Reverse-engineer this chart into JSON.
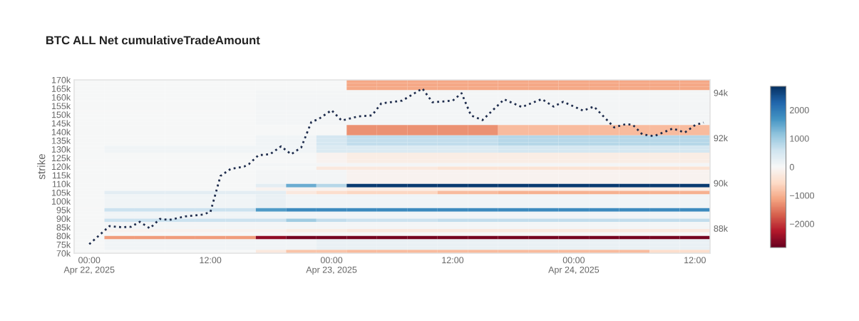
{
  "chart_data": {
    "type": "heatmap",
    "title": "BTC ALL Net cumulativeTradeAmount",
    "ylabel": "strike",
    "x": [
      "2025-04-22T00:00",
      "2025-04-22T03:00",
      "2025-04-22T06:00",
      "2025-04-22T09:00",
      "2025-04-22T12:00",
      "2025-04-22T15:00",
      "2025-04-22T18:00",
      "2025-04-22T21:00",
      "2025-04-23T00:00",
      "2025-04-23T03:00",
      "2025-04-23T06:00",
      "2025-04-23T09:00",
      "2025-04-23T12:00",
      "2025-04-23T15:00",
      "2025-04-23T18:00",
      "2025-04-23T21:00",
      "2025-04-24T00:00",
      "2025-04-24T03:00",
      "2025-04-24T06:00",
      "2025-04-24T09:00",
      "2025-04-24T12:00"
    ],
    "y": [
      169000,
      167000,
      165000,
      163000,
      161000,
      159000,
      157000,
      155000,
      153000,
      151000,
      149000,
      147000,
      145000,
      143000,
      141000,
      139000,
      137000,
      135000,
      133000,
      131000,
      129000,
      127000,
      125000,
      123000,
      121000,
      119000,
      117000,
      115000,
      113000,
      111000,
      109000,
      107000,
      105000,
      103000,
      101000,
      99000,
      97000,
      95000,
      93000,
      91000,
      89000,
      87000,
      85000,
      83000,
      81000,
      79000,
      77000,
      75000,
      73000,
      71000
    ],
    "cells": [
      [
        0,
        0,
        0,
        0,
        0,
        0,
        0,
        0,
        0,
        -1100,
        -1100,
        -1100,
        -1100,
        -1100,
        -1100,
        -1100,
        -1100,
        -1100,
        -1100,
        -1100,
        -1100
      ],
      [
        0,
        0,
        0,
        0,
        0,
        0,
        0,
        0,
        0,
        -1100,
        -1100,
        -1100,
        -1100,
        -1100,
        -1100,
        -1100,
        -1100,
        -1100,
        -1100,
        -1100,
        -1100
      ],
      [
        0,
        0,
        0,
        0,
        0,
        0,
        0,
        0,
        0,
        -1100,
        -1100,
        -1100,
        -1100,
        -1100,
        -1100,
        -1100,
        -1100,
        -1100,
        -1100,
        -1100,
        -1100
      ],
      [
        0,
        0,
        0,
        0,
        0,
        0,
        50,
        50,
        50,
        50,
        50,
        50,
        50,
        50,
        50,
        50,
        50,
        50,
        50,
        50,
        50
      ],
      [
        0,
        0,
        0,
        0,
        0,
        0,
        50,
        50,
        50,
        50,
        50,
        50,
        50,
        50,
        50,
        50,
        50,
        50,
        50,
        50,
        50
      ],
      [
        0,
        0,
        0,
        0,
        0,
        0,
        50,
        50,
        50,
        50,
        50,
        50,
        50,
        50,
        50,
        50,
        50,
        50,
        50,
        50,
        50
      ],
      [
        0,
        0,
        0,
        0,
        0,
        0,
        50,
        50,
        50,
        50,
        50,
        50,
        50,
        50,
        50,
        50,
        50,
        50,
        50,
        50,
        50
      ],
      [
        0,
        0,
        0,
        0,
        0,
        0,
        50,
        50,
        50,
        50,
        50,
        50,
        50,
        50,
        50,
        50,
        50,
        50,
        50,
        50,
        50
      ],
      [
        0,
        0,
        0,
        0,
        0,
        0,
        50,
        50,
        50,
        50,
        50,
        50,
        50,
        50,
        50,
        50,
        50,
        50,
        50,
        50,
        50
      ],
      [
        0,
        0,
        0,
        0,
        0,
        0,
        50,
        50,
        50,
        50,
        50,
        50,
        50,
        50,
        50,
        50,
        50,
        50,
        50,
        50,
        50
      ],
      [
        0,
        0,
        0,
        0,
        0,
        0,
        50,
        50,
        50,
        50,
        50,
        50,
        50,
        50,
        50,
        50,
        50,
        50,
        50,
        50,
        50
      ],
      [
        0,
        0,
        0,
        0,
        0,
        0,
        50,
        50,
        50,
        50,
        50,
        50,
        50,
        50,
        50,
        50,
        50,
        50,
        50,
        50,
        50
      ],
      [
        0,
        0,
        0,
        0,
        0,
        0,
        50,
        50,
        50,
        50,
        50,
        50,
        50,
        50,
        50,
        50,
        50,
        50,
        50,
        50,
        50
      ],
      [
        0,
        0,
        0,
        0,
        0,
        0,
        0,
        0,
        0,
        -1300,
        -1300,
        -1300,
        -1300,
        -1300,
        -900,
        -900,
        -900,
        -900,
        -900,
        -900,
        -900
      ],
      [
        0,
        0,
        0,
        0,
        0,
        0,
        0,
        0,
        0,
        -1300,
        -1300,
        -1300,
        -1300,
        -1300,
        -900,
        -900,
        -900,
        -900,
        -900,
        -900,
        -900
      ],
      [
        0,
        0,
        0,
        0,
        0,
        0,
        0,
        0,
        0,
        -1300,
        -1300,
        -1300,
        -1300,
        -1300,
        -900,
        -900,
        -900,
        -900,
        -900,
        -900,
        -900
      ],
      [
        0,
        0,
        0,
        0,
        0,
        0,
        100,
        100,
        500,
        700,
        700,
        700,
        700,
        700,
        800,
        800,
        800,
        800,
        800,
        800,
        800
      ],
      [
        0,
        0,
        0,
        0,
        0,
        0,
        100,
        100,
        500,
        700,
        700,
        700,
        700,
        700,
        800,
        800,
        800,
        800,
        800,
        800,
        800
      ],
      [
        0,
        0,
        0,
        0,
        0,
        0,
        100,
        100,
        500,
        700,
        700,
        700,
        700,
        700,
        800,
        800,
        800,
        800,
        800,
        800,
        800
      ],
      [
        0,
        100,
        100,
        100,
        100,
        100,
        100,
        100,
        400,
        400,
        400,
        400,
        400,
        400,
        500,
        500,
        500,
        500,
        500,
        500,
        500
      ],
      [
        0,
        100,
        100,
        100,
        100,
        100,
        100,
        100,
        400,
        400,
        400,
        400,
        400,
        400,
        500,
        500,
        500,
        500,
        500,
        500,
        500
      ],
      [
        0,
        0,
        0,
        0,
        0,
        0,
        0,
        0,
        -100,
        -200,
        -200,
        -200,
        -200,
        -200,
        -200,
        -200,
        -200,
        -200,
        -200,
        -200,
        -200
      ],
      [
        0,
        0,
        0,
        0,
        0,
        0,
        0,
        0,
        -100,
        -200,
        -200,
        -200,
        -200,
        -200,
        -200,
        -200,
        -200,
        -200,
        -200,
        -200,
        -200
      ],
      [
        0,
        0,
        0,
        0,
        0,
        0,
        0,
        0,
        -100,
        -200,
        -200,
        -200,
        -200,
        -200,
        -200,
        -200,
        -200,
        -200,
        -200,
        -200,
        -200
      ],
      [
        0,
        0,
        0,
        0,
        0,
        0,
        50,
        50,
        50,
        50,
        50,
        50,
        50,
        50,
        50,
        50,
        50,
        50,
        50,
        50,
        50
      ],
      [
        0,
        0,
        0,
        0,
        0,
        0,
        0,
        0,
        -300,
        -300,
        -300,
        -300,
        -400,
        -400,
        -400,
        -400,
        -400,
        -400,
        -400,
        -400,
        -400
      ],
      [
        0,
        0,
        0,
        0,
        0,
        0,
        50,
        50,
        50,
        -100,
        -100,
        -100,
        -100,
        -100,
        -100,
        -100,
        -100,
        -100,
        -100,
        -100,
        -100
      ],
      [
        0,
        0,
        0,
        0,
        0,
        0,
        50,
        50,
        50,
        -100,
        -100,
        -100,
        -100,
        -100,
        -100,
        -100,
        -100,
        -100,
        -100,
        -100,
        -100
      ],
      [
        0,
        0,
        0,
        0,
        0,
        0,
        50,
        50,
        50,
        -100,
        -100,
        -100,
        -100,
        -100,
        -100,
        -100,
        -100,
        -100,
        -100,
        -100,
        -100
      ],
      [
        0,
        0,
        0,
        0,
        0,
        0,
        50,
        50,
        50,
        -100,
        -100,
        -100,
        -100,
        -100,
        -100,
        -100,
        -100,
        -100,
        -100,
        -100,
        -100
      ],
      [
        0,
        0,
        0,
        0,
        0,
        0,
        300,
        1400,
        800,
        2700,
        2700,
        2700,
        2700,
        2700,
        2700,
        2700,
        2700,
        2700,
        2700,
        2700,
        2700
      ],
      [
        0,
        0,
        0,
        0,
        0,
        0,
        -100,
        -100,
        -100,
        -200,
        -200,
        -200,
        -200,
        -200,
        -200,
        -200,
        -200,
        -200,
        -200,
        -200,
        -200
      ],
      [
        0,
        300,
        300,
        300,
        300,
        300,
        300,
        -300,
        -500,
        -600,
        -600,
        -600,
        -900,
        -900,
        -1000,
        -1000,
        -1000,
        -1000,
        -1000,
        -1000,
        -1000
      ],
      [
        0,
        100,
        100,
        100,
        100,
        100,
        200,
        100,
        100,
        100,
        100,
        100,
        100,
        100,
        100,
        100,
        100,
        100,
        100,
        100,
        100
      ],
      [
        0,
        100,
        100,
        100,
        100,
        100,
        200,
        100,
        100,
        100,
        100,
        100,
        100,
        100,
        100,
        100,
        100,
        100,
        100,
        100,
        100
      ],
      [
        0,
        100,
        100,
        100,
        100,
        100,
        200,
        100,
        100,
        100,
        100,
        100,
        100,
        100,
        100,
        100,
        100,
        100,
        100,
        100,
        100
      ],
      [
        0,
        100,
        100,
        100,
        100,
        100,
        200,
        100,
        100,
        100,
        100,
        100,
        100,
        100,
        100,
        100,
        100,
        100,
        100,
        100,
        100
      ],
      [
        0,
        600,
        600,
        600,
        600,
        600,
        1600,
        1800,
        1800,
        1800,
        1800,
        1800,
        1800,
        1800,
        1800,
        1800,
        1800,
        1800,
        1800,
        1800,
        1800
      ],
      [
        0,
        100,
        100,
        100,
        100,
        100,
        100,
        100,
        100,
        100,
        100,
        100,
        100,
        100,
        100,
        100,
        100,
        100,
        100,
        100,
        100
      ],
      [
        0,
        100,
        100,
        100,
        100,
        100,
        100,
        100,
        100,
        100,
        100,
        100,
        100,
        100,
        100,
        100,
        100,
        100,
        100,
        100,
        100
      ],
      [
        0,
        600,
        600,
        600,
        600,
        600,
        600,
        1000,
        700,
        600,
        600,
        600,
        700,
        700,
        700,
        700,
        700,
        700,
        700,
        700,
        700
      ],
      [
        0,
        50,
        50,
        50,
        50,
        50,
        50,
        50,
        50,
        50,
        50,
        50,
        50,
        50,
        50,
        50,
        50,
        50,
        50,
        50,
        50
      ],
      [
        0,
        50,
        50,
        50,
        50,
        50,
        50,
        50,
        50,
        50,
        50,
        50,
        50,
        50,
        50,
        50,
        50,
        50,
        50,
        50,
        50
      ],
      [
        0,
        -100,
        -100,
        -100,
        -100,
        -100,
        -100,
        -200,
        -200,
        -300,
        -300,
        -300,
        -300,
        -300,
        -300,
        -300,
        -300,
        -300,
        -300,
        -300,
        -300
      ],
      [
        0,
        0,
        0,
        0,
        0,
        0,
        0,
        0,
        0,
        0,
        0,
        0,
        0,
        0,
        0,
        0,
        0,
        0,
        0,
        0,
        0
      ],
      [
        0,
        -1200,
        -1200,
        -1200,
        -1200,
        -1200,
        -2500,
        -2700,
        -2700,
        -2700,
        -2700,
        -2700,
        -2700,
        -2700,
        -2700,
        -2700,
        -2700,
        -2700,
        -2700,
        -2700,
        -2700
      ],
      [
        0,
        100,
        100,
        100,
        100,
        100,
        100,
        100,
        200,
        200,
        200,
        200,
        200,
        200,
        200,
        200,
        200,
        200,
        200,
        200,
        200
      ],
      [
        0,
        100,
        100,
        100,
        100,
        100,
        100,
        100,
        200,
        200,
        200,
        200,
        200,
        200,
        200,
        200,
        200,
        200,
        200,
        200,
        200
      ],
      [
        0,
        100,
        100,
        100,
        100,
        100,
        100,
        100,
        200,
        200,
        200,
        200,
        200,
        200,
        200,
        200,
        200,
        200,
        200,
        200,
        200
      ],
      [
        0,
        0,
        0,
        0,
        0,
        0,
        -300,
        -800,
        -800,
        -900,
        -900,
        -900,
        -900,
        -900,
        -900,
        -900,
        -900,
        -900,
        -900,
        -500,
        -500
      ]
    ],
    "clim": [
      -2830,
      2830
    ],
    "cticks": [
      {
        "value": -2000,
        "label": "−2000"
      },
      {
        "value": -1000,
        "label": "−1000"
      },
      0,
      1000,
      2000
    ],
    "xlim": [
      "2025-04-21T22:30",
      "2025-04-24T13:30"
    ],
    "xticks": [
      {
        "value": "2025-04-22T00:00",
        "label": "00:00\nApr 22, 2025"
      },
      {
        "value": "2025-04-22T12:00",
        "label": "12:00"
      },
      {
        "value": "2025-04-23T00:00",
        "label": "00:00\nApr 23, 2025"
      },
      {
        "value": "2025-04-23T12:00",
        "label": "12:00"
      },
      {
        "value": "2025-04-24T00:00",
        "label": "00:00\nApr 24, 2025"
      },
      {
        "value": "2025-04-24T12:00",
        "label": "12:00"
      }
    ],
    "ylim": [
      70000,
      170000
    ],
    "yticks": [
      {
        "value": 70000,
        "label": "70k"
      },
      {
        "value": 75000,
        "label": "75k"
      },
      {
        "value": 80000,
        "label": "80k"
      },
      {
        "value": 85000,
        "label": "85k"
      },
      {
        "value": 90000,
        "label": "90k"
      },
      {
        "value": 95000,
        "label": "95k"
      },
      {
        "value": 100000,
        "label": "100k"
      },
      {
        "value": 105000,
        "label": "105k"
      },
      {
        "value": 110000,
        "label": "110k"
      },
      {
        "value": 115000,
        "label": "115k"
      },
      {
        "value": 120000,
        "label": "120k"
      },
      {
        "value": 125000,
        "label": "125k"
      },
      {
        "value": 130000,
        "label": "130k"
      },
      {
        "value": 135000,
        "label": "135k"
      },
      {
        "value": 140000,
        "label": "140k"
      },
      {
        "value": 145000,
        "label": "145k"
      },
      {
        "value": 150000,
        "label": "150k"
      },
      {
        "value": 155000,
        "label": "155k"
      },
      {
        "value": 160000,
        "label": "160k"
      },
      {
        "value": 165000,
        "label": "165k"
      },
      {
        "value": 170000,
        "label": "170k"
      }
    ],
    "y2lim": [
      86900,
      94570
    ],
    "y2ticks": [
      {
        "value": 88000,
        "label": "88k"
      },
      {
        "value": 90000,
        "label": "90k"
      },
      {
        "value": 92000,
        "label": "92k"
      },
      {
        "value": 94000,
        "label": "94k"
      }
    ],
    "series": [
      {
        "type": "line",
        "axis": "y2",
        "color": "#1f2d4d",
        "line_style": "dotted",
        "x": [
          "2025-04-22T00:00",
          "2025-04-22T02:00",
          "2025-04-22T03:12",
          "2025-04-22T04:08",
          "2025-04-22T05:00",
          "2025-04-22T06:00",
          "2025-04-22T07:00",
          "2025-04-22T07:54",
          "2025-04-22T09:30",
          "2025-04-22T11:10",
          "2025-04-22T12:00",
          "2025-04-22T13:00",
          "2025-04-22T14:00",
          "2025-04-22T15:22",
          "2025-04-22T15:48",
          "2025-04-22T16:46",
          "2025-04-22T17:54",
          "2025-04-22T19:00",
          "2025-04-22T20:00",
          "2025-04-22T21:00",
          "2025-04-22T22:00",
          "2025-04-22T22:44",
          "2025-04-23T00:00",
          "2025-04-23T01:00",
          "2025-04-23T02:36",
          "2025-04-23T04:00",
          "2025-04-23T04:56",
          "2025-04-23T07:00",
          "2025-04-23T09:00",
          "2025-04-23T10:00",
          "2025-04-23T12:00",
          "2025-04-23T12:53",
          "2025-04-23T13:49",
          "2025-04-23T14:57",
          "2025-04-23T17:06",
          "2025-04-23T18:51",
          "2025-04-23T20:50",
          "2025-04-23T22:00",
          "2025-04-23T22:57",
          "2025-04-24T00:56",
          "2025-04-24T02:00",
          "2025-04-24T04:00",
          "2025-04-24T05:08",
          "2025-04-24T05:51",
          "2025-04-24T06:47",
          "2025-04-24T07:57",
          "2025-04-24T09:49",
          "2025-04-24T11:00",
          "2025-04-24T12:03",
          "2025-04-24T12:52"
        ],
        "values": [
          87300,
          88100,
          88050,
          88070,
          88290,
          88000,
          88420,
          88370,
          88530,
          88610,
          88720,
          90320,
          90630,
          90740,
          90840,
          91240,
          91280,
          91630,
          91280,
          91580,
          92710,
          92840,
          93230,
          92770,
          92950,
          93000,
          93530,
          93650,
          94190,
          93580,
          93650,
          93980,
          93000,
          92790,
          93710,
          93370,
          93720,
          93390,
          93600,
          93210,
          93390,
          92470,
          92610,
          92580,
          92160,
          92080,
          92420,
          92240,
          92580,
          92680
        ]
      }
    ]
  }
}
